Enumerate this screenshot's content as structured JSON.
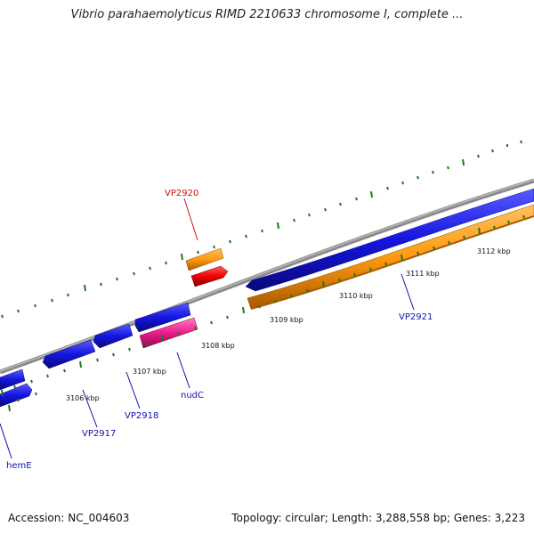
{
  "title": "Vibrio parahaemolyticus RIMD 2210633 chromosome I, complete ...",
  "footer": {
    "accession": "Accession: NC_004603",
    "summary": "Topology: circular; Length: 3,288,558 bp; Genes: 3,223"
  },
  "colors": {
    "backbone": "#8a8a8a",
    "tick": "#1a7a1a",
    "gene_blue": "#1515e0",
    "gene_orange": "#ff9a10",
    "gene_red": "#ee0000",
    "gene_pink": "#ee1a8c",
    "label_blue": "#1010b0",
    "label_red": "#d01010"
  },
  "kbp_ticks": [
    "3106 kbp",
    "3107 kbp",
    "3108 kbp",
    "3109 kbp",
    "3110 kbp",
    "3111 kbp",
    "3112 kbp"
  ],
  "gene_labels": {
    "vp2920": "VP2920",
    "vp2917": "VP2917",
    "vp2918": "VP2918",
    "nudc": "nudC",
    "hemE": "hemE",
    "vp2921": "VP2921"
  }
}
